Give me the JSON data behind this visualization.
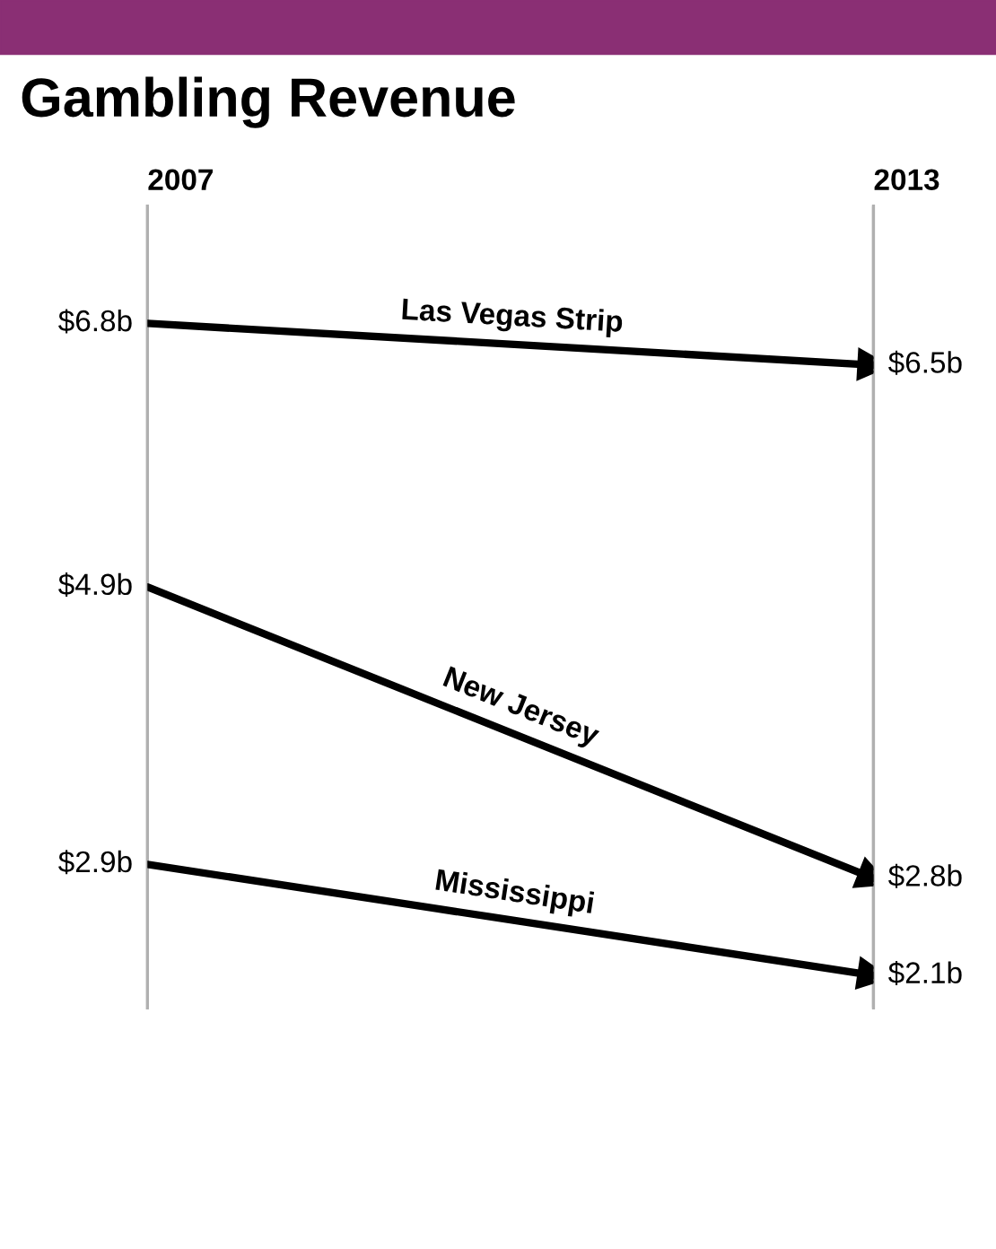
{
  "chart_data": {
    "type": "line",
    "title": "Gambling Revenue",
    "categories": [
      "2007",
      "2013"
    ],
    "series": [
      {
        "name": "Las Vegas Strip",
        "color": "#000000",
        "values": [
          6.8,
          6.5
        ],
        "value_labels": [
          "$6.8b",
          "$6.5b"
        ]
      },
      {
        "name": "New Jersey",
        "color": "#000000",
        "values": [
          4.9,
          2.8
        ],
        "value_labels": [
          "$4.9b",
          "$2.8b"
        ]
      },
      {
        "name": "Mississippi",
        "color": "#000000",
        "values": [
          2.9,
          2.1
        ],
        "value_labels": [
          "$2.9b",
          "$2.1b"
        ]
      }
    ],
    "marker": "triangle",
    "line_style": "solid",
    "legend": false,
    "tick_labels": "x"
  }
}
